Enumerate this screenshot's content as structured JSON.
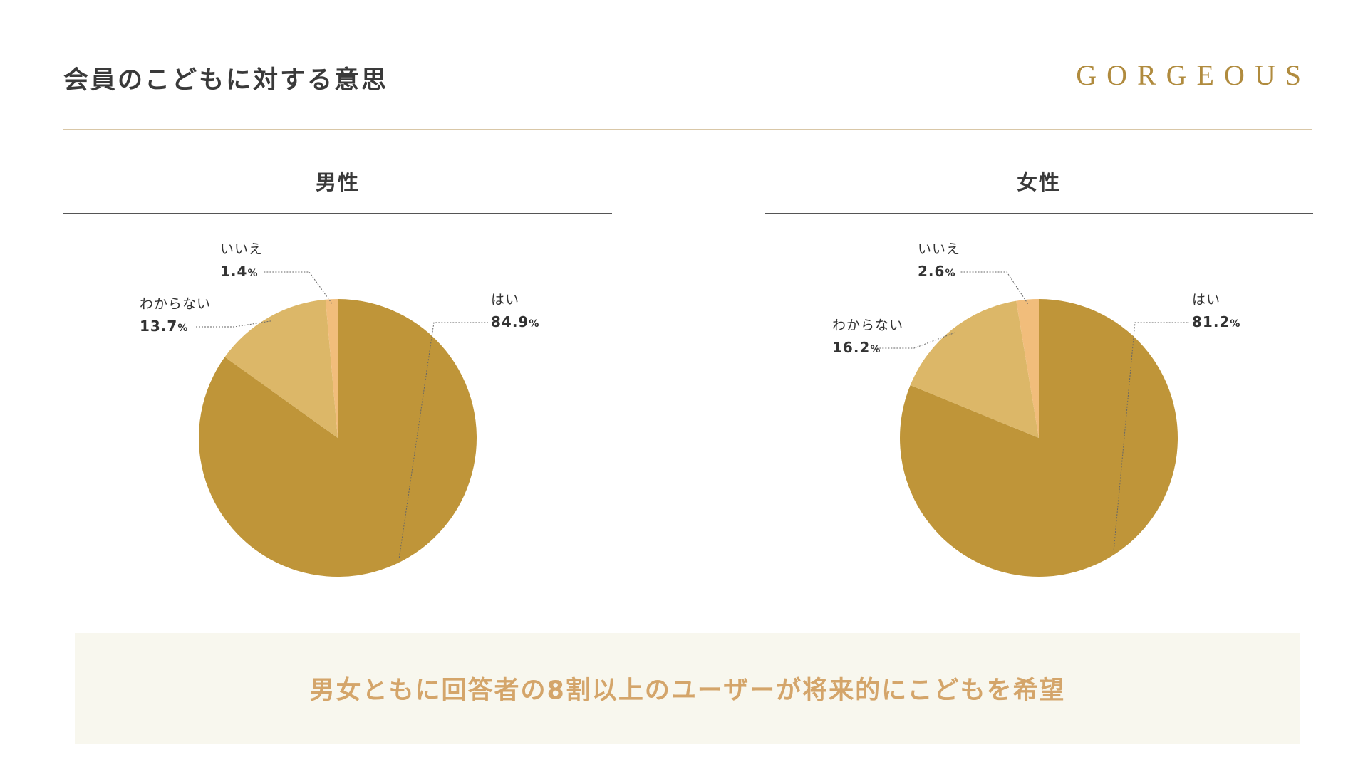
{
  "header": {
    "title": "会員のこどもに対する意思",
    "brand": "GORGEOUS"
  },
  "colors": {
    "yes": "#bf9539",
    "unknown": "#dcb768",
    "no": "#f1bd7b",
    "brand": "#b08b3e",
    "summary_text": "#d4a56a",
    "summary_bg": "#f8f7ee"
  },
  "chart_data": [
    {
      "type": "pie",
      "title": "男性",
      "slices": [
        {
          "label": "はい",
          "value": 84.9,
          "unit": "%"
        },
        {
          "label": "わからない",
          "value": 13.7,
          "unit": "%"
        },
        {
          "label": "いいえ",
          "value": 1.4,
          "unit": "%"
        }
      ]
    },
    {
      "type": "pie",
      "title": "女性",
      "slices": [
        {
          "label": "はい",
          "value": 81.2,
          "unit": "%"
        },
        {
          "label": "わからない",
          "value": 16.2,
          "unit": "%"
        },
        {
          "label": "いいえ",
          "value": 2.6,
          "unit": "%"
        }
      ]
    }
  ],
  "summary": {
    "text": "男女ともに回答者の8割以上のユーザーが将来的にこどもを希望"
  }
}
